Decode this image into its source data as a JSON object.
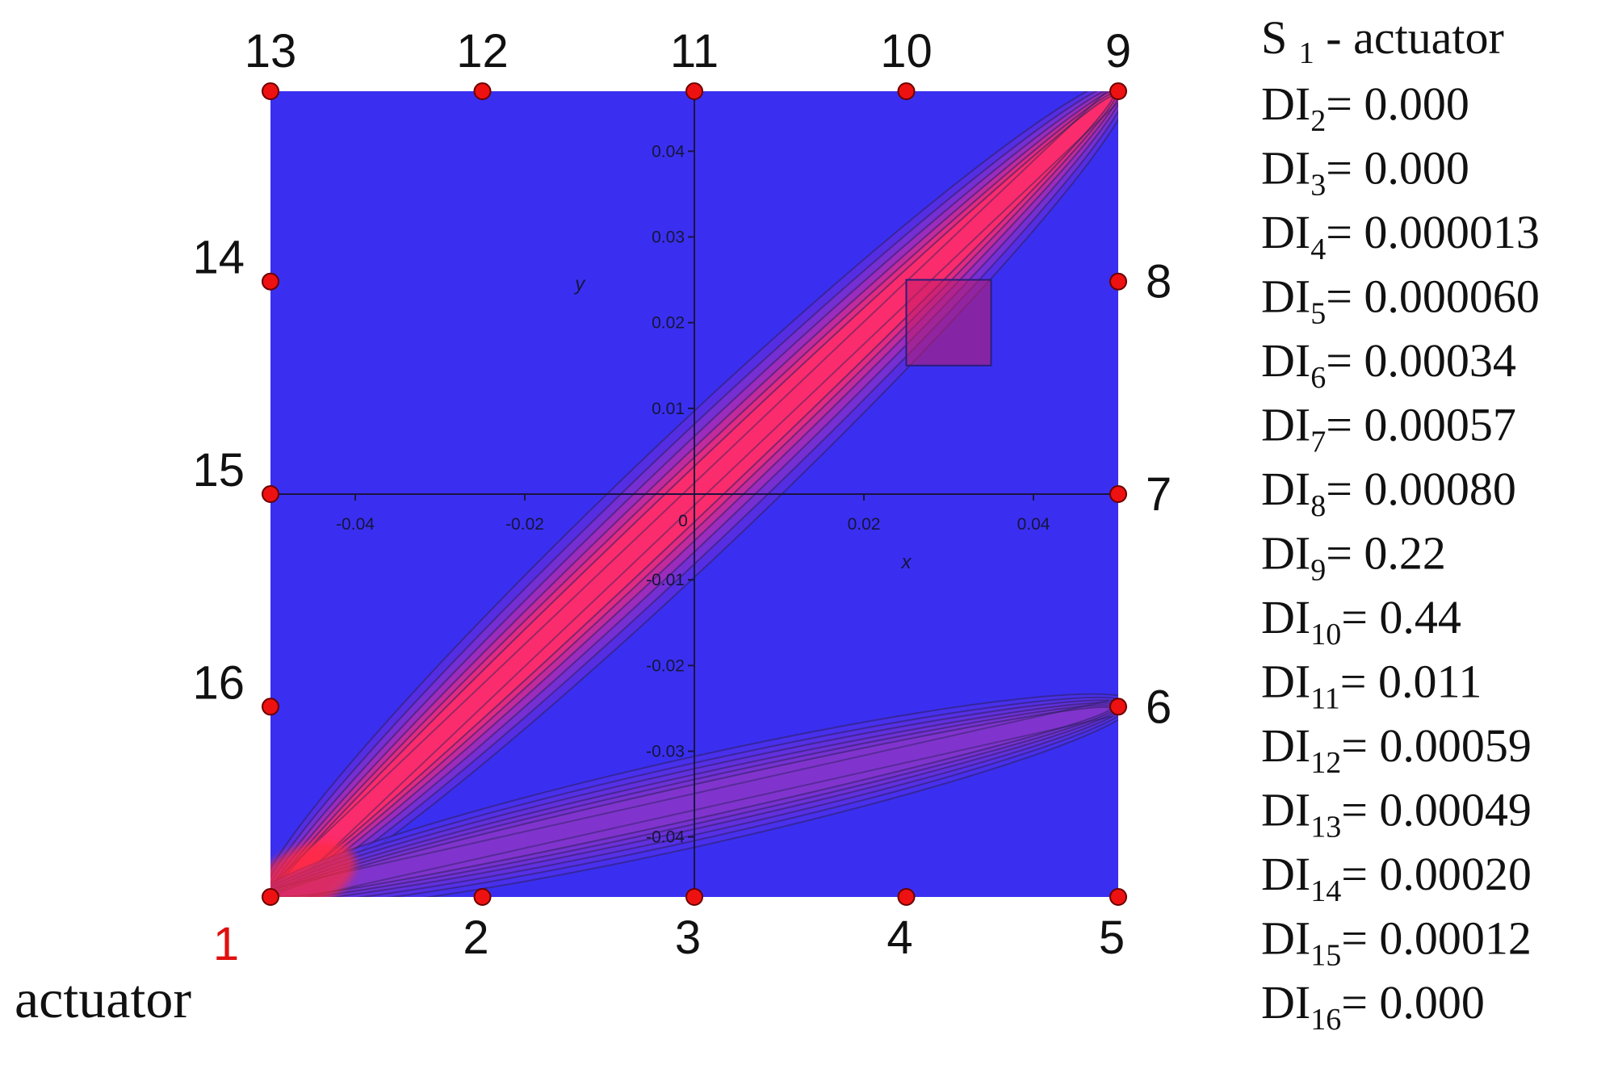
{
  "chart_data": {
    "type": "heatmap",
    "title": "",
    "xlabel": "x",
    "ylabel": "y",
    "xlim": [
      -0.05,
      0.05
    ],
    "ylim": [
      -0.047,
      0.047
    ],
    "x_ticks": [
      "-0.04",
      "-0.02",
      "0.02",
      "0.04"
    ],
    "y_ticks": [
      "0.04",
      "0.03",
      "0.02",
      "0.01",
      "-0.01",
      "-0.02",
      "-0.03",
      "-0.04"
    ],
    "origin_label": "0",
    "actuator_sensor": "1",
    "actuator_label": "actuator",
    "colors": {
      "background": "#3a2ff0",
      "high": "#ff2d6a",
      "contour": "#2b1f5c",
      "sensor": "#ee1111",
      "actuator_number": "#e01010"
    },
    "sensors": [
      {
        "id": "1",
        "x": -0.05,
        "y": -0.047
      },
      {
        "id": "2",
        "x": -0.025,
        "y": -0.047
      },
      {
        "id": "3",
        "x": 0.0,
        "y": -0.047
      },
      {
        "id": "4",
        "x": 0.025,
        "y": -0.047
      },
      {
        "id": "5",
        "x": 0.05,
        "y": -0.047
      },
      {
        "id": "6",
        "x": 0.05,
        "y": -0.0248
      },
      {
        "id": "7",
        "x": 0.05,
        "y": 0.0
      },
      {
        "id": "8",
        "x": 0.05,
        "y": 0.0248
      },
      {
        "id": "9",
        "x": 0.05,
        "y": 0.047
      },
      {
        "id": "10",
        "x": 0.025,
        "y": 0.047
      },
      {
        "id": "11",
        "x": 0.0,
        "y": 0.047
      },
      {
        "id": "12",
        "x": -0.025,
        "y": 0.047
      },
      {
        "id": "13",
        "x": -0.05,
        "y": 0.047
      },
      {
        "id": "14",
        "x": -0.05,
        "y": 0.0248
      },
      {
        "id": "15",
        "x": -0.05,
        "y": 0.0
      },
      {
        "id": "16",
        "x": -0.05,
        "y": -0.0248
      }
    ],
    "damage_region": {
      "x": [
        0.025,
        0.035
      ],
      "y": [
        0.015,
        0.025
      ]
    },
    "paths": [
      {
        "from": "1",
        "to": "9",
        "intensity": "high"
      },
      {
        "from": "1",
        "to": "6",
        "intensity": "medium"
      }
    ],
    "legend_heading": {
      "main": "S",
      "sub": "1",
      "suffix": " - actuator"
    },
    "damage_indices": [
      {
        "label": "DI",
        "sub": "2",
        "eq": "= ",
        "value": "0.000"
      },
      {
        "label": "DI",
        "sub": "3",
        "eq": "= ",
        "value": "0.000"
      },
      {
        "label": "DI",
        "sub": "4",
        "eq": "= ",
        "value": "0.000013"
      },
      {
        "label": "DI",
        "sub": "5",
        "eq": "= ",
        "value": "0.000060"
      },
      {
        "label": "DI",
        "sub": "6",
        "eq": "= ",
        "value": "0.00034"
      },
      {
        "label": "DI",
        "sub": "7",
        "eq": "= ",
        "value": "0.00057"
      },
      {
        "label": "DI",
        "sub": "8",
        "eq": "= ",
        "value": "0.00080"
      },
      {
        "label": "DI",
        "sub": "9",
        "eq": "= ",
        "value": "0.22"
      },
      {
        "label": "DI",
        "sub": "10",
        "eq": "=",
        "value": "0.44"
      },
      {
        "label": "DI",
        "sub": "11",
        "eq": "=",
        "value": "0.011"
      },
      {
        "label": "DI",
        "sub": "12",
        "eq": "=",
        "value": "0.00059"
      },
      {
        "label": "DI",
        "sub": "13",
        "eq": "=",
        "value": "0.00049"
      },
      {
        "label": "DI",
        "sub": "14",
        "eq": "=",
        "value": "0.00020"
      },
      {
        "label": "DI",
        "sub": "15",
        "eq": "=",
        "value": "0.00012"
      },
      {
        "label": "DI",
        "sub": "16",
        "eq": "=",
        "value": "0.000"
      }
    ]
  }
}
